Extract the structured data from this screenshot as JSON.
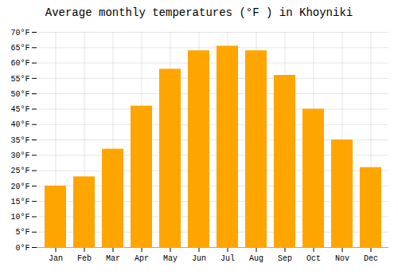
{
  "chart_data": {
    "type": "bar",
    "title": "Average monthly temperatures (°F ) in Khoyniki",
    "categories": [
      "Jan",
      "Feb",
      "Mar",
      "Apr",
      "May",
      "Jun",
      "Jul",
      "Aug",
      "Sep",
      "Oct",
      "Nov",
      "Dec"
    ],
    "values": [
      20,
      23,
      32,
      46,
      58,
      64,
      65.5,
      64,
      56,
      45,
      35,
      26
    ],
    "color": "#FFA500",
    "ylim": [
      0,
      70
    ],
    "yticks": [
      {
        "value": 0,
        "label": "0°F"
      },
      {
        "value": 5,
        "label": "5°F"
      },
      {
        "value": 10,
        "label": "10°F"
      },
      {
        "value": 15,
        "label": "15°F"
      },
      {
        "value": 20,
        "label": "20°F"
      },
      {
        "value": 25,
        "label": "25°F"
      },
      {
        "value": 30,
        "label": "30°F"
      },
      {
        "value": 35,
        "label": "35°F"
      },
      {
        "value": 40,
        "label": "40°F"
      },
      {
        "value": 45,
        "label": "45°F"
      },
      {
        "value": 50,
        "label": "50°F"
      },
      {
        "value": 55,
        "label": "55°F"
      },
      {
        "value": 60,
        "label": "60°F"
      },
      {
        "value": 65,
        "label": "65°F"
      },
      {
        "value": 70,
        "label": "70°F"
      }
    ],
    "grid": true
  }
}
